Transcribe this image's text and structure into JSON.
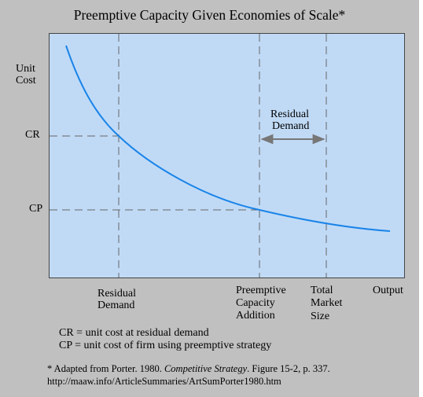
{
  "title": "Preemptive Capacity Given Economies of Scale*",
  "y_axis": {
    "label_line1": "Unit",
    "label_line2": "Cost",
    "cr_label": "CR",
    "cp_label": "CP"
  },
  "x_axis": {
    "residual_demand_line1": "Residual",
    "residual_demand_line2": "Demand",
    "preemptive_line1": "Preemptive",
    "preemptive_line2": "Capacity",
    "preemptive_line3": "Addition",
    "total_line1": "Total",
    "total_line2": "Market",
    "total_line3": "Size",
    "output_label": "Output"
  },
  "annotation": {
    "line1": "Residual",
    "line2": "Demand"
  },
  "legend": {
    "cr": "CR = unit cost at residual demand",
    "cp": "CP = unit cost of firm using preemptive strategy"
  },
  "source": {
    "prefix": "* Adapted from Porter. 1980. ",
    "book": "Competitive Strategy",
    "suffix": ". Figure 15-2, p. 337.",
    "url": "http://maaw.info/ArticleSummaries/ArtSumPorter1980.htm"
  },
  "colors": {
    "curve": "#1a84e8",
    "plot_background": "#c0daf6",
    "frame_background": "#c0c0c0",
    "guide_lines": "#666666",
    "arrow": "#777777"
  }
}
